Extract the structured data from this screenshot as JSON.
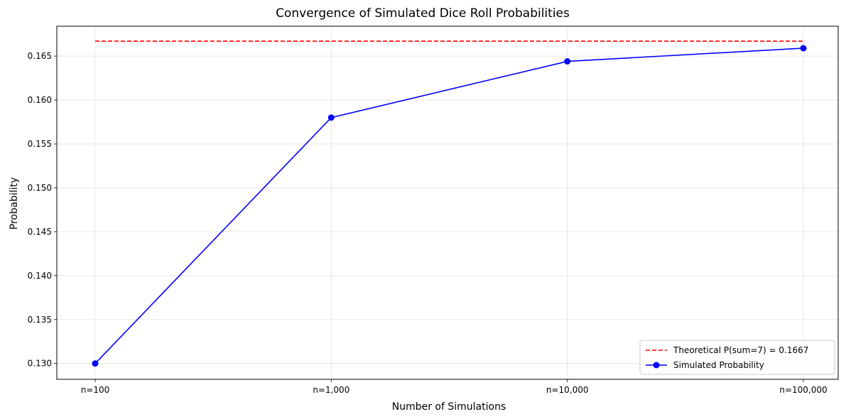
{
  "chart_data": {
    "type": "line",
    "title": "Convergence of Simulated Dice Roll Probabilities",
    "xlabel": "Number of Simulations",
    "ylabel": "Probability",
    "categories": [
      "n=100",
      "n=1,000",
      "n=10,000",
      "n=100,000"
    ],
    "y_ticks": [
      0.13,
      0.135,
      0.14,
      0.145,
      0.15,
      0.155,
      0.16,
      0.165
    ],
    "y_tick_labels": [
      "0.130",
      "0.135",
      "0.140",
      "0.145",
      "0.150",
      "0.155",
      "0.160",
      "0.165"
    ],
    "ylim": [
      0.1282,
      0.1684
    ],
    "grid": true,
    "legend_position": "lower-right",
    "reference_line": {
      "name": "Theoretical P(sum=7) = 0.1667",
      "value": 0.1667,
      "color": "#ff0000",
      "style": "dashed"
    },
    "series": [
      {
        "name": "Simulated Probability",
        "color": "#0000ff",
        "marker": "circle",
        "values": [
          0.13,
          0.158,
          0.1644,
          0.1659
        ]
      }
    ]
  }
}
